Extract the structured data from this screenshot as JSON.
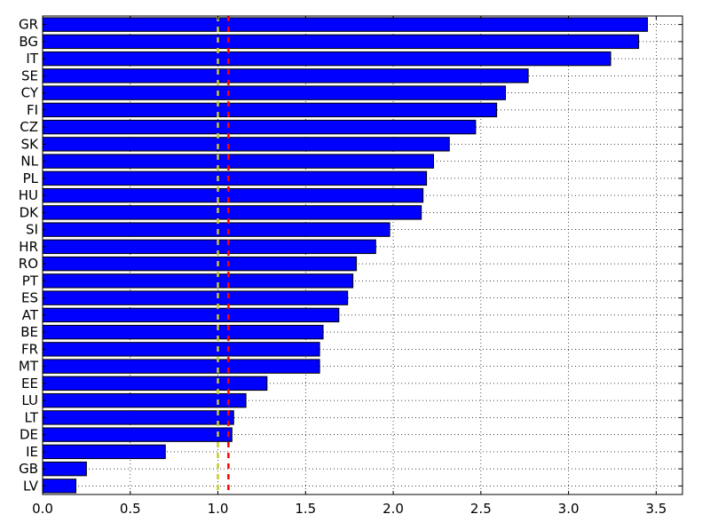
{
  "chart_data": {
    "type": "bar",
    "orientation": "horizontal",
    "categories": [
      "GR",
      "BG",
      "IT",
      "SE",
      "CY",
      "FI",
      "CZ",
      "SK",
      "NL",
      "PL",
      "HU",
      "DK",
      "SI",
      "HR",
      "RO",
      "PT",
      "ES",
      "AT",
      "BE",
      "FR",
      "MT",
      "EE",
      "LU",
      "LT",
      "DE",
      "IE",
      "GB",
      "LV"
    ],
    "values": [
      3.45,
      3.4,
      3.24,
      2.77,
      2.64,
      2.59,
      2.47,
      2.32,
      2.23,
      2.19,
      2.17,
      2.16,
      1.98,
      1.9,
      1.79,
      1.77,
      1.74,
      1.69,
      1.6,
      1.58,
      1.58,
      1.28,
      1.16,
      1.09,
      1.08,
      0.7,
      0.25,
      0.19
    ],
    "xlim": [
      0,
      3.65
    ],
    "xticks": [
      "0.0",
      "0.5",
      "1.0",
      "1.5",
      "2.0",
      "2.5",
      "3.0",
      "3.5"
    ],
    "xtick_values": [
      0,
      0.5,
      1.0,
      1.5,
      2.0,
      2.5,
      3.0,
      3.5
    ],
    "reference_lines": [
      {
        "x": 1.0,
        "color": "#c8c832",
        "style": "dashed"
      },
      {
        "x": 1.06,
        "color": "#ff0000",
        "style": "dashed"
      }
    ],
    "grid": true,
    "bar_color": "#0000ff",
    "title": "",
    "xlabel": "",
    "ylabel": ""
  }
}
